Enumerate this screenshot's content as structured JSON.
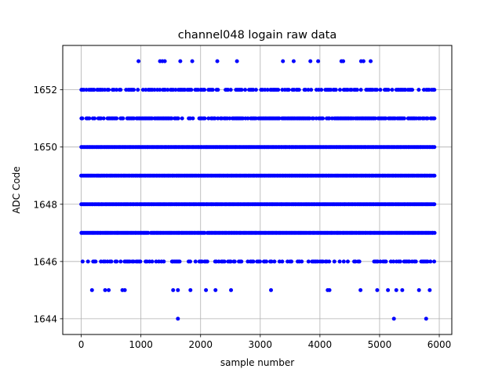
{
  "chart_data": {
    "type": "scatter",
    "title": "channel048 logain raw data",
    "xlabel": "sample number",
    "ylabel": "ADC Code",
    "xlim": [
      -310,
      6210
    ],
    "ylim": [
      1643.45,
      1653.55
    ],
    "xticks": [
      0,
      1000,
      2000,
      3000,
      4000,
      5000,
      6000
    ],
    "yticks": [
      1644,
      1646,
      1648,
      1650,
      1652
    ],
    "grid": true,
    "marker_color": "#0000ff",
    "dense_levels": [
      {
        "y": 1646,
        "x_range": [
          0,
          5930
        ],
        "density": 0.5
      },
      {
        "y": 1647,
        "x_range": [
          0,
          5930
        ],
        "density": 0.97
      },
      {
        "y": 1648,
        "x_range": [
          0,
          5930
        ],
        "density": 1.0
      },
      {
        "y": 1649,
        "x_range": [
          0,
          5930
        ],
        "density": 1.0
      },
      {
        "y": 1650,
        "x_range": [
          0,
          5930
        ],
        "density": 1.0
      },
      {
        "y": 1651,
        "x_range": [
          0,
          5930
        ],
        "density": 0.8
      },
      {
        "y": 1652,
        "x_range": [
          0,
          5930
        ],
        "density": 0.6
      }
    ],
    "sparse_points": {
      "1653": [
        960,
        1320,
        1360,
        1400,
        1660,
        1860,
        2280,
        2610,
        3380,
        3560,
        3840,
        3970,
        4360,
        4390,
        4690,
        4730,
        4850
      ],
      "1645": [
        180,
        400,
        460,
        690,
        730,
        1540,
        1620,
        1830,
        2090,
        2250,
        2510,
        3180,
        4130,
        4160,
        4680,
        4960,
        5140,
        5280,
        5380,
        5660,
        5840
      ],
      "1644": [
        1620,
        5240,
        5780
      ]
    }
  }
}
